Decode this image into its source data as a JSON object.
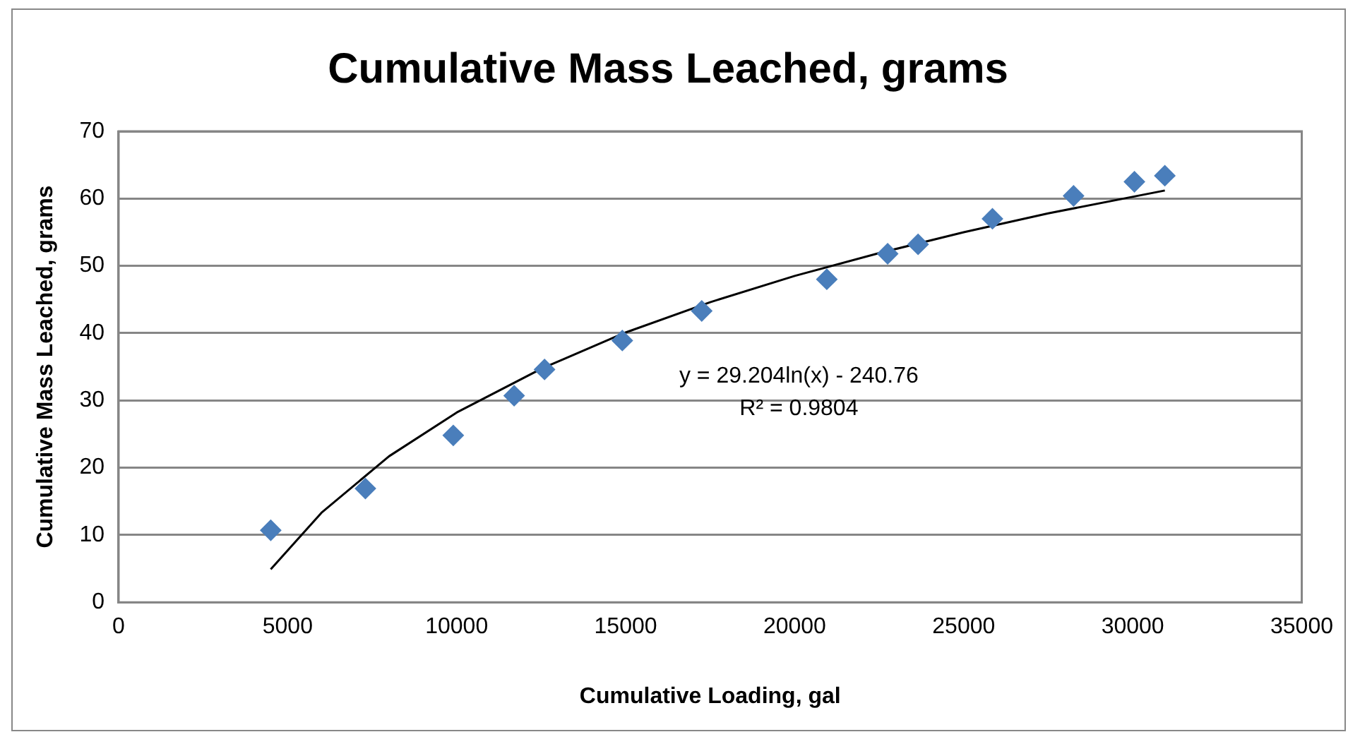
{
  "chart_data": {
    "type": "scatter",
    "title": "Cumulative Mass Leached, grams",
    "xlabel": "Cumulative Loading, gal",
    "ylabel": "Cumulative Mass Leached, grams",
    "xlim": [
      0,
      35000
    ],
    "xticks": [
      0,
      5000,
      10000,
      15000,
      20000,
      25000,
      30000,
      35000
    ],
    "ylim": [
      0,
      70
    ],
    "yticks": [
      0,
      10,
      20,
      30,
      40,
      50,
      60,
      70
    ],
    "grid": "y",
    "marker": "diamond",
    "series": [
      {
        "type": "scatter",
        "color": "#4a7ebb",
        "x": [
          4500,
          7300,
          9900,
          11700,
          12600,
          14900,
          17250,
          20950,
          22750,
          23650,
          25850,
          28250,
          30050,
          30950
        ],
        "values": [
          10.7,
          16.9,
          24.8,
          30.7,
          34.6,
          38.9,
          43.3,
          48.0,
          51.8,
          53.2,
          57.0,
          60.4,
          62.5,
          63.4
        ]
      },
      {
        "type": "line",
        "color": "#000000",
        "marker": "none",
        "x": [
          4500,
          6000,
          8000,
          10000,
          12500,
          15000,
          17500,
          20000,
          22500,
          25000,
          27500,
          30950
        ],
        "values": [
          4.9,
          13.3,
          21.7,
          28.2,
          34.7,
          40.1,
          44.6,
          48.5,
          51.9,
          55.0,
          57.8,
          61.2
        ]
      }
    ],
    "annotations": [
      "y = 29.204ln(x) - 240.76",
      "R² = 0.9804"
    ]
  }
}
